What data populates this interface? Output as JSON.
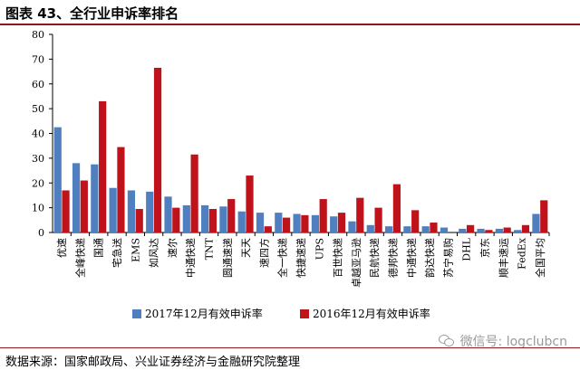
{
  "header": {
    "title": "图表 43、全行业申诉率排名"
  },
  "footer": {
    "source": "数据来源：国家邮政局、兴业证券经济与金融研究院整理",
    "watermark": "微信号: logclubcn",
    "watermark_icon": "wechat-icon"
  },
  "colors": {
    "series_2017": "#4f7fbf",
    "series_2016": "#c0121b",
    "rule": "#8b1a1a"
  },
  "chart_data": {
    "type": "bar",
    "categories": [
      "优速",
      "全峰快递",
      "国通",
      "宅急送",
      "EMS",
      "如风达",
      "速尔",
      "中通快递",
      "TNT",
      "圆通速递",
      "天天",
      "速四方",
      "全一快递",
      "快捷速递",
      "UPS",
      "百世快递",
      "卓越亚马逊",
      "民航快递",
      "德邦快递",
      "中通快递",
      "韵达快递",
      "苏宁易购",
      "DHL",
      "京东",
      "顺丰速运",
      "FedEx",
      "全国平均"
    ],
    "series": [
      {
        "name": "2017年12月有效申诉率",
        "values": [
          42.5,
          28,
          27.5,
          18,
          17,
          16.5,
          14.5,
          11,
          11,
          10.5,
          8.5,
          8,
          8,
          7.5,
          7,
          6.5,
          4.5,
          3,
          2.5,
          2.5,
          2.5,
          2,
          1.5,
          1.5,
          1.5,
          1,
          7.5
        ]
      },
      {
        "name": "2016年12月有效申诉率",
        "values": [
          17,
          21,
          53,
          34.5,
          9.5,
          66.5,
          10,
          31.5,
          9.5,
          13.5,
          23,
          2.5,
          6,
          7,
          13.5,
          8,
          14,
          10,
          19.5,
          9,
          4,
          0,
          3,
          1,
          2,
          3,
          13
        ]
      }
    ],
    "ylim": [
      0,
      80
    ],
    "yticks": [
      0,
      10,
      20,
      30,
      40,
      50,
      60,
      70,
      80
    ],
    "grid": false,
    "legend_position": "bottom"
  }
}
